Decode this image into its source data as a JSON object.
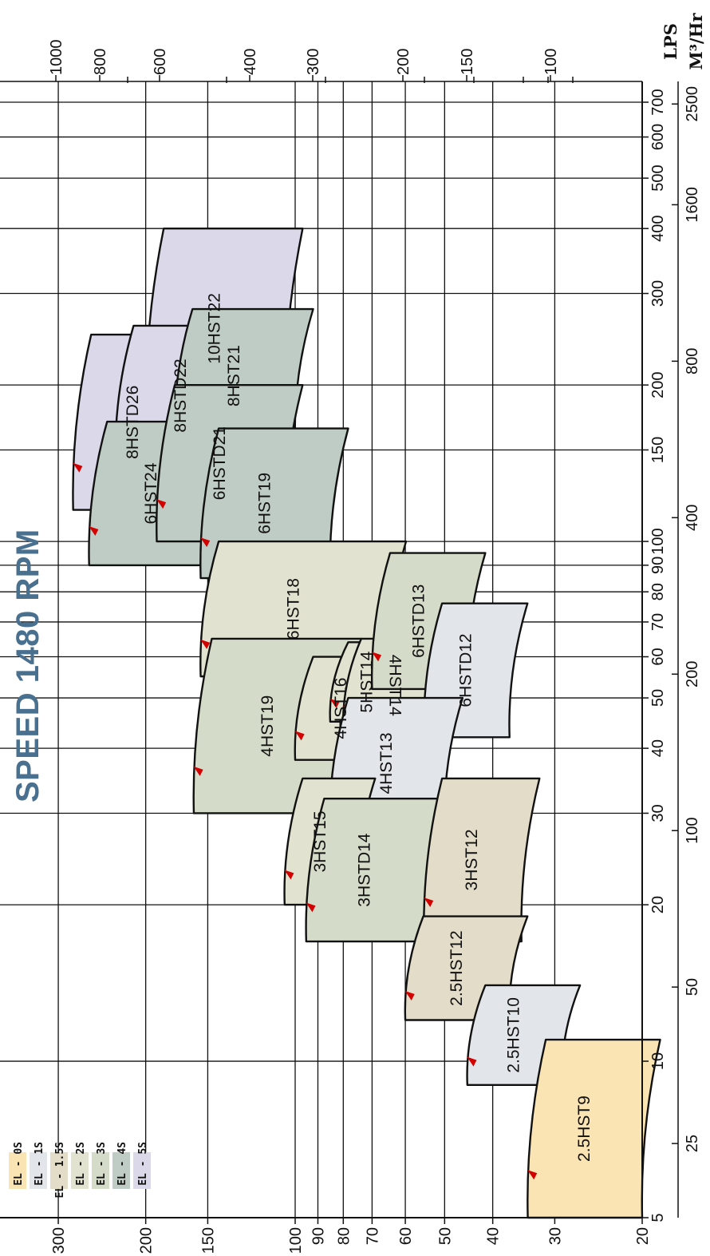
{
  "chart_data": {
    "type": "area",
    "title": "SPEED 1480 RPM",
    "head_axis_ticks": [
      {
        "v": 300,
        "label": "300"
      },
      {
        "v": 200,
        "label": "200"
      },
      {
        "v": 150,
        "label": "150"
      },
      {
        "v": 100,
        "label": "100"
      },
      {
        "v": 90,
        "label": "90"
      },
      {
        "v": 80,
        "label": "80"
      },
      {
        "v": 70,
        "label": "70"
      },
      {
        "v": 60,
        "label": "60"
      },
      {
        "v": 50,
        "label": "50"
      },
      {
        "v": 40,
        "label": "40"
      },
      {
        "v": 30,
        "label": "30"
      },
      {
        "v": 20,
        "label": "20"
      }
    ],
    "lps_axis": {
      "unit": "LPS",
      "ticks": [
        {
          "v": 5,
          "label": "5"
        },
        {
          "v": 10,
          "label": "10"
        },
        {
          "v": 20,
          "label": "20"
        },
        {
          "v": 30,
          "label": "30"
        },
        {
          "v": 40,
          "label": "40"
        },
        {
          "v": 50,
          "label": "50"
        },
        {
          "v": 60,
          "label": "60"
        },
        {
          "v": 70,
          "label": "70"
        },
        {
          "v": 80,
          "label": "80"
        },
        {
          "v": 90,
          "label": "90"
        },
        {
          "v": 100,
          "label": "100"
        },
        {
          "v": 150,
          "label": "150"
        },
        {
          "v": 200,
          "label": "200"
        },
        {
          "v": 300,
          "label": "300"
        },
        {
          "v": 400,
          "label": "400"
        },
        {
          "v": 500,
          "label": "500"
        },
        {
          "v": 600,
          "label": "600"
        },
        {
          "v": 700,
          "label": "700"
        }
      ]
    },
    "m3hr_axis": {
      "unit": "M³/Hr",
      "ticks": [
        {
          "v": 25,
          "label": "25"
        },
        {
          "v": 50,
          "label": "50"
        },
        {
          "v": 100,
          "label": "100"
        },
        {
          "v": 200,
          "label": "200"
        },
        {
          "v": 400,
          "label": "400"
        },
        {
          "v": 800,
          "label": "800"
        },
        {
          "v": 1600,
          "label": "1600"
        },
        {
          "v": 2500,
          "label": "2500"
        }
      ]
    },
    "top_axis": {
      "unit": "",
      "ticks": [
        {
          "v": 1000,
          "label": "1000"
        },
        {
          "v": 800,
          "label": "800"
        },
        {
          "v": 600,
          "label": "600"
        },
        {
          "v": 400,
          "label": "400"
        },
        {
          "v": 300,
          "label": "300"
        },
        {
          "v": 200,
          "label": "200"
        },
        {
          "v": 150,
          "label": "150"
        },
        {
          "v": 100,
          "label": "100"
        }
      ]
    },
    "legend": [
      {
        "label": "EL - 0S",
        "color": "#fbe4b4"
      },
      {
        "label": "EL - 1S",
        "color": "#e2e5e9"
      },
      {
        "label": "EL - 1.5S",
        "color": "#e3dcc8"
      },
      {
        "label": "EL - 2S",
        "color": "#e1e2cf"
      },
      {
        "label": "EL - 3S",
        "color": "#d4dbc8"
      },
      {
        "label": "EL - 4S",
        "color": "#bfccc5"
      },
      {
        "label": "EL - 5S",
        "color": "#dbd8ea"
      }
    ],
    "series": [
      {
        "name": "10HST22",
        "class": "EL - 5S",
        "q_range_lps": [
          165,
          400
        ],
        "h_range_m": [
          105,
          200
        ]
      },
      {
        "name": "8HSTD26",
        "class": "EL - 5S",
        "q_range_lps": [
          115,
          250
        ],
        "h_range_m": [
          160,
          280
        ]
      },
      {
        "name": "8HSTD22",
        "class": "EL - 5S",
        "q_range_lps": [
          140,
          260
        ],
        "h_range_m": [
          125,
          230
        ]
      },
      {
        "name": "8HST21",
        "class": "EL - 4S",
        "q_range_lps": [
          155,
          280
        ],
        "h_range_m": [
          100,
          175
        ]
      },
      {
        "name": "6HST24",
        "class": "EL - 4S",
        "q_range_lps": [
          90,
          170
        ],
        "h_range_m": [
          145,
          260
        ]
      },
      {
        "name": "6HSTD21",
        "class": "EL - 4S",
        "q_range_lps": [
          100,
          200
        ],
        "h_range_m": [
          105,
          190
        ]
      },
      {
        "name": "6HST19",
        "class": "EL - 4S",
        "q_range_lps": [
          85,
          165
        ],
        "h_range_m": [
          85,
          155
        ]
      },
      {
        "name": "6HST18",
        "class": "EL - 2S",
        "q_range_lps": [
          55,
          100
        ],
        "h_range_m": [
          65,
          155
        ]
      },
      {
        "name": "4HST19",
        "class": "EL - 3S",
        "q_range_lps": [
          30,
          65
        ],
        "h_range_m": [
          80,
          160
        ]
      },
      {
        "name": "4HST16",
        "class": "EL - 2S",
        "q_range_lps": [
          38,
          60
        ],
        "h_range_m": [
          65,
          100
        ]
      },
      {
        "name": "5HST14",
        "class": "EL - 2S",
        "q_range_lps": [
          45,
          64
        ],
        "h_range_m": [
          60,
          85
        ]
      },
      {
        "name": "4HST14",
        "class": "EL - 2S",
        "q_range_lps": [
          43,
          65
        ],
        "h_range_m": [
          50,
          80
        ]
      },
      {
        "name": "6HSTD13",
        "class": "EL - 3S",
        "q_range_lps": [
          52,
          95
        ],
        "h_range_m": [
          45,
          70
        ]
      },
      {
        "name": "6HSTD12",
        "class": "EL - 1S",
        "q_range_lps": [
          42,
          76
        ],
        "h_range_m": [
          37,
          55
        ]
      },
      {
        "name": "4HST13",
        "class": "EL - 1S",
        "q_range_lps": [
          28,
          50
        ],
        "h_range_m": [
          50,
          85
        ]
      },
      {
        "name": "3HST15",
        "class": "EL - 2S",
        "q_range_lps": [
          20,
          35
        ],
        "h_range_m": [
          75,
          105
        ]
      },
      {
        "name": "3HSTD14",
        "class": "EL - 3S",
        "q_range_lps": [
          17,
          32
        ],
        "h_range_m": [
          55,
          95
        ]
      },
      {
        "name": "3HST12",
        "class": "EL - 1.5S",
        "q_range_lps": [
          17,
          35
        ],
        "h_range_m": [
          35,
          55
        ]
      },
      {
        "name": "2.5HST12",
        "class": "EL - 1.5S",
        "q_range_lps": [
          12,
          19
        ],
        "h_range_m": [
          37,
          60
        ]
      },
      {
        "name": "2.5HST10",
        "class": "EL - 1S",
        "q_range_lps": [
          9,
          14
        ],
        "h_range_m": [
          29,
          45
        ]
      },
      {
        "name": "2.5HST9",
        "class": "EL - 0S",
        "q_range_lps": [
          5,
          11
        ],
        "h_range_m": [
          20,
          34
        ]
      }
    ]
  }
}
